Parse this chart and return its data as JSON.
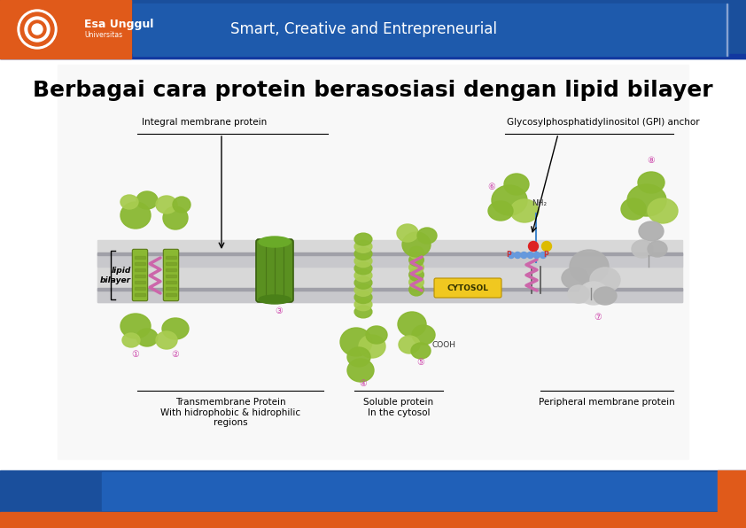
{
  "title": "Berbagai cara protein berasosiasi dengan lipid bilayer",
  "header_blue": "#1a4f9c",
  "header_orange": "#e05a1a",
  "header_text": "Smart, Creative and Entrepreneurial",
  "footer_blue": "#1a4f9c",
  "footer_orange": "#e05a1a",
  "title_fontsize": 18,
  "label_gpi": "Glycosylphosphatidylinositol (GPI) anchor",
  "label_integral": "Integral membrane protein",
  "label_transmembrane": "Transmembrane Protein\nWith hidrophobic & hidrophilic\nregions",
  "label_soluble": "Soluble protein\nIn the cytosol",
  "label_peripheral": "Peripheral membrane protein",
  "label_lipid": "lipid\nbilayer",
  "label_cytosol": "CYTOSOL",
  "helix_green": "#8ab832",
  "helix_dark": "#5a7a15",
  "helix_light": "#a8cc50",
  "gray_protein": "#b0b0b0",
  "gray_dark": "#808080",
  "bilayer_gray": "#c8c8c8",
  "bilayer_dark": "#a0a0a0",
  "cytosol_yellow": "#f0c020",
  "pink_helix": "#d070b0",
  "gpi_blue": "#4488cc",
  "gpi_red": "#cc3333",
  "gpi_yellow": "#ddcc00"
}
